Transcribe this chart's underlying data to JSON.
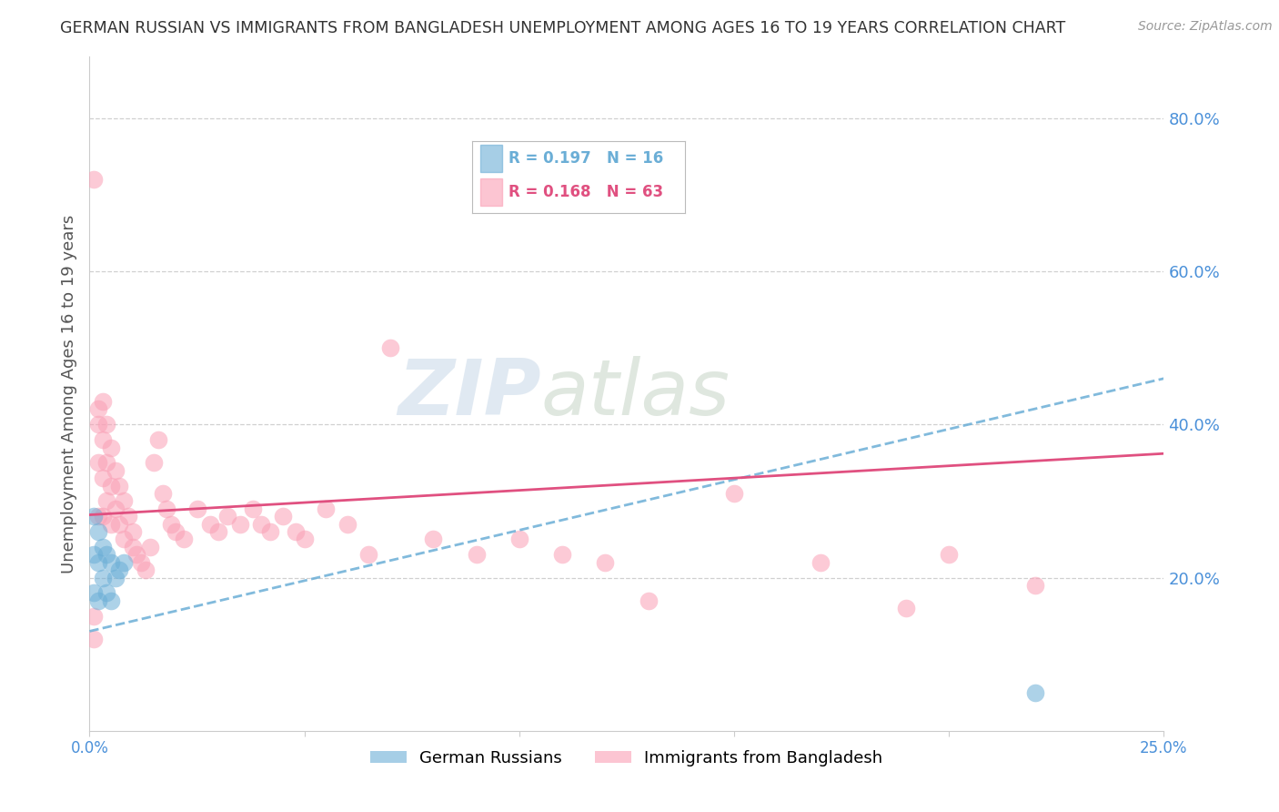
{
  "title": "GERMAN RUSSIAN VS IMMIGRANTS FROM BANGLADESH UNEMPLOYMENT AMONG AGES 16 TO 19 YEARS CORRELATION CHART",
  "source": "Source: ZipAtlas.com",
  "ylabel": "Unemployment Among Ages 16 to 19 years",
  "xlim": [
    0.0,
    0.25
  ],
  "ylim": [
    0.0,
    0.88
  ],
  "yticks_right": [
    0.2,
    0.4,
    0.6,
    0.8
  ],
  "ytick_right_labels": [
    "20.0%",
    "40.0%",
    "60.0%",
    "80.0%"
  ],
  "german_russian_x": [
    0.001,
    0.001,
    0.001,
    0.002,
    0.002,
    0.002,
    0.003,
    0.003,
    0.004,
    0.004,
    0.005,
    0.005,
    0.006,
    0.007,
    0.008,
    0.22
  ],
  "german_russian_y": [
    0.28,
    0.23,
    0.18,
    0.26,
    0.22,
    0.17,
    0.24,
    0.2,
    0.23,
    0.18,
    0.22,
    0.17,
    0.2,
    0.21,
    0.22,
    0.05
  ],
  "bangladesh_x": [
    0.001,
    0.001,
    0.001,
    0.002,
    0.002,
    0.002,
    0.002,
    0.003,
    0.003,
    0.003,
    0.003,
    0.004,
    0.004,
    0.004,
    0.005,
    0.005,
    0.005,
    0.006,
    0.006,
    0.007,
    0.007,
    0.008,
    0.008,
    0.009,
    0.01,
    0.01,
    0.011,
    0.012,
    0.013,
    0.014,
    0.015,
    0.016,
    0.017,
    0.018,
    0.019,
    0.02,
    0.022,
    0.025,
    0.028,
    0.03,
    0.032,
    0.035,
    0.038,
    0.04,
    0.042,
    0.045,
    0.048,
    0.05,
    0.055,
    0.06,
    0.065,
    0.07,
    0.08,
    0.09,
    0.1,
    0.11,
    0.12,
    0.13,
    0.15,
    0.17,
    0.19,
    0.2,
    0.22
  ],
  "bangladesh_y": [
    0.72,
    0.15,
    0.12,
    0.42,
    0.4,
    0.35,
    0.28,
    0.43,
    0.38,
    0.33,
    0.28,
    0.4,
    0.35,
    0.3,
    0.37,
    0.32,
    0.27,
    0.34,
    0.29,
    0.32,
    0.27,
    0.3,
    0.25,
    0.28,
    0.26,
    0.24,
    0.23,
    0.22,
    0.21,
    0.24,
    0.35,
    0.38,
    0.31,
    0.29,
    0.27,
    0.26,
    0.25,
    0.29,
    0.27,
    0.26,
    0.28,
    0.27,
    0.29,
    0.27,
    0.26,
    0.28,
    0.26,
    0.25,
    0.29,
    0.27,
    0.23,
    0.5,
    0.25,
    0.23,
    0.25,
    0.23,
    0.22,
    0.17,
    0.31,
    0.22,
    0.16,
    0.23,
    0.19
  ],
  "gr_trend_x0": 0.0,
  "gr_trend_y0": 0.13,
  "gr_trend_x1": 0.25,
  "gr_trend_y1": 0.46,
  "bd_trend_x0": 0.0,
  "bd_trend_y0": 0.282,
  "bd_trend_x1": 0.25,
  "bd_trend_y1": 0.362,
  "german_russian_color": "#6baed6",
  "bangladesh_color": "#fa9fb5",
  "german_russian_trend_color": "#6baed6",
  "bangladesh_trend_color": "#e05080",
  "legend_R_german": "R = 0.197",
  "legend_N_german": "N = 16",
  "legend_R_bangladesh": "R = 0.168",
  "legend_N_bangladesh": "N = 63",
  "legend_label_german": "German Russians",
  "legend_label_bangladesh": "Immigrants from Bangladesh",
  "watermark_zip": "ZIP",
  "watermark_atlas": "atlas",
  "background_color": "#ffffff",
  "grid_color": "#d0d0d0"
}
